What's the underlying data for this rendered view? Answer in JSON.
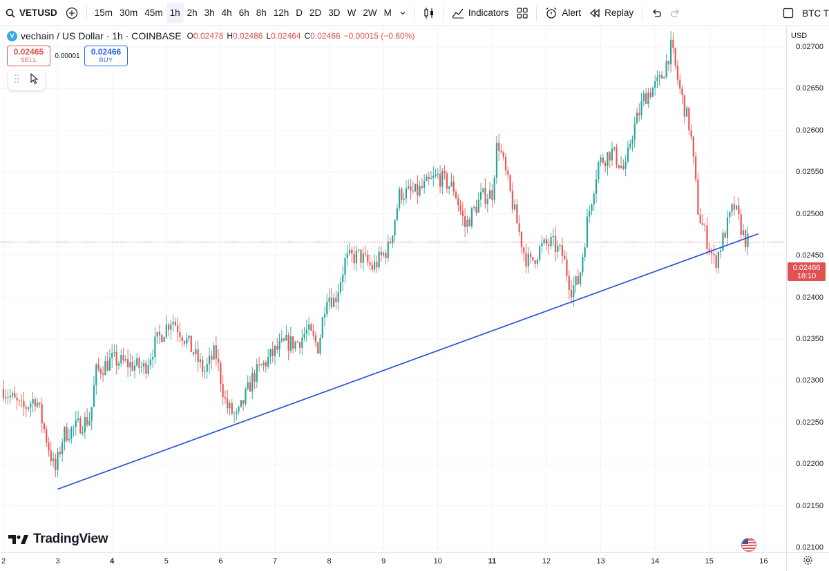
{
  "toolbar": {
    "symbol": "VETUSD",
    "intervals": [
      "15m",
      "30m",
      "45m",
      "1h",
      "2h",
      "3h",
      "4h",
      "6h",
      "8h",
      "12h",
      "D",
      "2D",
      "3D",
      "W",
      "2W",
      "M"
    ],
    "active_interval": "1h",
    "indicators_label": "Indicators",
    "alert_label": "Alert",
    "replay_label": "Replay",
    "compare_label": "BTC T"
  },
  "legend": {
    "title": "vechain / US Dollar · 1h · COINBASE",
    "open_key": "O",
    "open": "0.02478",
    "high_key": "H",
    "high": "0.02486",
    "low_key": "L",
    "low": "0.02464",
    "close_key": "C",
    "close": "0.02466",
    "change": "−0.00015 (−0.60%)"
  },
  "trade": {
    "sell_price": "0.02465",
    "sell_label": "SELL",
    "spread": "0.00001",
    "buy_price": "0.02466",
    "buy_label": "BUY"
  },
  "price_scale": {
    "currency": "USD",
    "labels": [
      "0.02700",
      "0.02650",
      "0.02600",
      "0.02550",
      "0.02500",
      "0.02450",
      "0.02400",
      "0.02350",
      "0.02300",
      "0.02250",
      "0.02200",
      "0.02150",
      "0.02100"
    ],
    "current_price": "0.02466",
    "countdown": "18:10"
  },
  "time_scale": {
    "labels": [
      "2",
      "3",
      "4",
      "5",
      "6",
      "7",
      "8",
      "9",
      "10",
      "11",
      "12",
      "13",
      "14",
      "15",
      "16"
    ],
    "bold_labels": [
      "4",
      "11"
    ]
  },
  "watermark": "TradingView",
  "colors": {
    "up": "#26a69a",
    "down": "#ef5350",
    "trendline": "#2a5bd7",
    "accent": "#2962ff"
  },
  "chart_data": {
    "type": "candlestick",
    "symbol": "VETUSD",
    "timeframe": "1h",
    "x": [
      "2",
      "3",
      "4",
      "5",
      "6",
      "7",
      "8",
      "9",
      "10",
      "11",
      "12",
      "13",
      "14",
      "15",
      "16"
    ],
    "ylim": [
      0.021,
      0.027
    ],
    "approx_daily_close": [
      0.0229,
      0.0223,
      0.0233,
      0.0235,
      0.0226,
      0.0234,
      0.0243,
      0.0246,
      0.0254,
      0.0256,
      0.0246,
      0.0258,
      0.0266,
      0.0247
    ],
    "trendline": {
      "from": [
        "3",
        0.0217
      ],
      "to": [
        "15.9",
        0.02476
      ]
    },
    "last_price": 0.02466
  }
}
